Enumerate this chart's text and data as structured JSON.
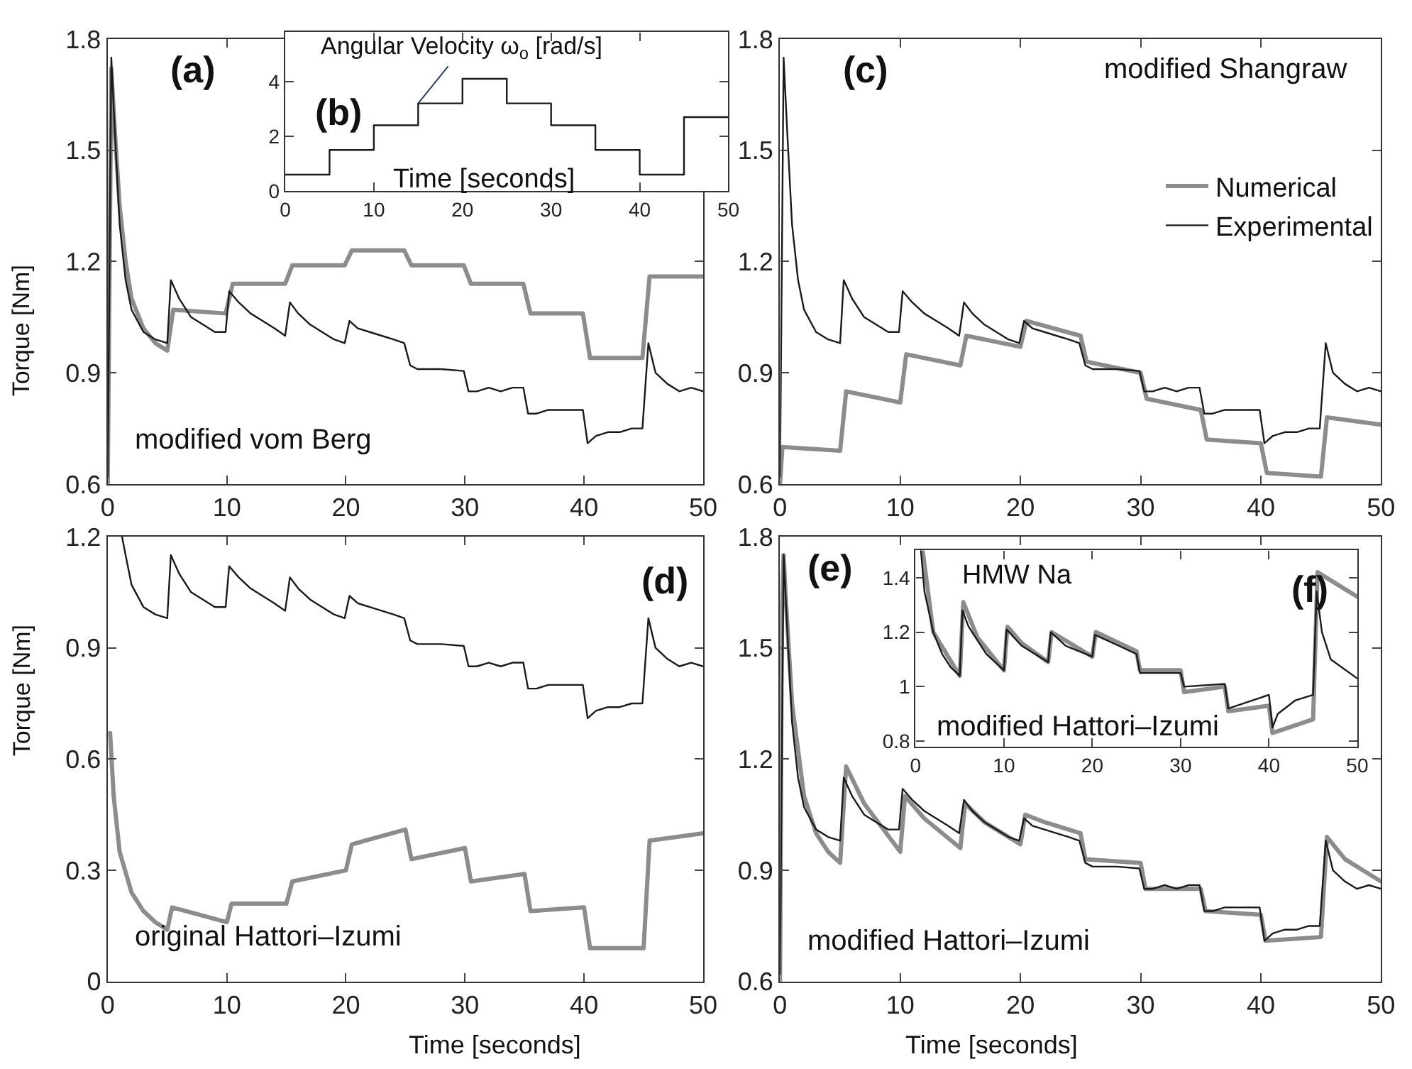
{
  "chart_data": [
    {
      "type": "line",
      "ylabel": "Torque [Nm]",
      "annotations": [
        "(a)",
        "modified vom Berg"
      ],
      "xlim": [
        0,
        50
      ],
      "xticks": [
        0,
        10,
        20,
        30,
        40,
        50
      ],
      "ylim": [
        0.6,
        1.8
      ],
      "yticks": [
        0.6,
        0.9,
        1.2,
        1.5,
        1.8
      ],
      "legend": false,
      "series": [
        {
          "color": "#8c8c8c",
          "x": [
            0,
            0.3,
            0.6,
            1,
            1.5,
            2,
            3,
            4,
            5,
            5.5,
            9.9,
            10.5,
            14.9,
            15.5,
            19.9,
            20.5,
            24.9,
            25.5,
            29.9,
            30.5,
            34.9,
            35.5,
            39.9,
            40.5,
            44.9,
            45.5,
            50
          ],
          "values": [
            0.6,
            1.72,
            1.55,
            1.35,
            1.2,
            1.1,
            1.02,
            0.98,
            0.96,
            1.07,
            1.06,
            1.14,
            1.14,
            1.19,
            1.19,
            1.23,
            1.23,
            1.19,
            1.19,
            1.14,
            1.14,
            1.06,
            1.06,
            0.94,
            0.94,
            1.16,
            1.16
          ]
        },
        {
          "color": "#1a1a1a",
          "x": [
            0,
            0.3,
            0.6,
            1,
            1.5,
            2,
            3,
            4,
            5,
            5.3,
            6,
            7,
            8,
            9,
            9.9,
            10.2,
            11,
            12,
            13,
            14,
            14.9,
            15.3,
            16,
            17,
            18,
            19,
            19.9,
            20.3,
            21,
            22,
            23,
            24,
            24.9,
            25.4,
            26,
            28,
            29.9,
            30.3,
            31,
            32,
            33,
            34,
            34.9,
            35.3,
            36,
            37,
            38,
            39,
            39.9,
            40.3,
            41,
            42,
            43,
            44,
            44.9,
            45.4,
            46,
            47,
            48,
            49,
            50
          ],
          "values": [
            0.62,
            1.75,
            1.55,
            1.3,
            1.15,
            1.07,
            1.01,
            0.99,
            0.98,
            1.15,
            1.1,
            1.05,
            1.03,
            1.01,
            1.01,
            1.12,
            1.09,
            1.06,
            1.04,
            1.02,
            1.0,
            1.09,
            1.06,
            1.03,
            1.01,
            0.99,
            0.98,
            1.04,
            1.02,
            1.01,
            1.0,
            0.99,
            0.98,
            0.92,
            0.91,
            0.91,
            0.905,
            0.85,
            0.85,
            0.86,
            0.85,
            0.86,
            0.86,
            0.79,
            0.79,
            0.8,
            0.8,
            0.8,
            0.8,
            0.71,
            0.73,
            0.74,
            0.74,
            0.75,
            0.75,
            0.98,
            0.9,
            0.87,
            0.85,
            0.86,
            0.85
          ]
        }
      ]
    },
    {
      "type": "step",
      "xlabel": "Time [seconds]",
      "annotations": [
        "(b)",
        {
          "text": "Angular Velocity ω$_{o}$ [rad/s]",
          "x": 15,
          "y": 3.2
        }
      ],
      "xlim": [
        0,
        50
      ],
      "xticks": [
        0,
        10,
        20,
        30,
        40,
        50
      ],
      "ylim": [
        0,
        5.8
      ],
      "yticks": [
        0,
        2,
        4
      ],
      "legend": false,
      "series": [
        {
          "color": "#1a1a1a",
          "x": [
            0,
            5,
            10,
            15,
            20,
            25,
            30,
            35,
            40,
            45,
            50
          ],
          "values": [
            0.6,
            1.5,
            2.4,
            3.2,
            4.1,
            3.2,
            2.4,
            1.5,
            0.6,
            2.7,
            2.7
          ]
        }
      ]
    },
    {
      "type": "line",
      "annotations": [
        "(c)",
        "modified Shangraw"
      ],
      "xlim": [
        0,
        50
      ],
      "xticks": [
        0,
        10,
        20,
        30,
        40,
        50
      ],
      "ylim": [
        0.6,
        1.8
      ],
      "yticks": [
        0.6,
        0.9,
        1.2,
        1.5,
        1.8
      ],
      "legend": "right",
      "series": [
        {
          "name": "Numerical",
          "color": "#8c8c8c",
          "x": [
            0,
            0.2,
            5,
            5.5,
            10,
            10.5,
            15,
            15.5,
            20,
            20.5,
            25,
            25.5,
            30,
            30.5,
            35,
            35.5,
            40,
            40.5,
            45,
            45.5,
            50
          ],
          "values": [
            0.6,
            0.7,
            0.69,
            0.85,
            0.82,
            0.95,
            0.92,
            1.0,
            0.97,
            1.04,
            1.0,
            0.93,
            0.9,
            0.83,
            0.8,
            0.72,
            0.71,
            0.63,
            0.62,
            0.78,
            0.76
          ]
        },
        {
          "name": "Experimental",
          "color": "#1a1a1a",
          "x": [
            0,
            0.3,
            0.6,
            1,
            1.5,
            2,
            3,
            4,
            5,
            5.3,
            6,
            7,
            8,
            9,
            9.9,
            10.2,
            11,
            12,
            13,
            14,
            14.9,
            15.3,
            16,
            17,
            18,
            19,
            19.9,
            20.3,
            21,
            22,
            23,
            24,
            24.9,
            25.4,
            26,
            28,
            29.9,
            30.3,
            31,
            32,
            33,
            34,
            34.9,
            35.3,
            36,
            37,
            38,
            39,
            39.9,
            40.3,
            41,
            42,
            43,
            44,
            44.9,
            45.4,
            46,
            47,
            48,
            49,
            50
          ],
          "values": [
            0.62,
            1.75,
            1.55,
            1.3,
            1.15,
            1.07,
            1.01,
            0.99,
            0.98,
            1.15,
            1.1,
            1.05,
            1.03,
            1.01,
            1.01,
            1.12,
            1.09,
            1.06,
            1.04,
            1.02,
            1.0,
            1.09,
            1.06,
            1.03,
            1.01,
            0.99,
            0.98,
            1.04,
            1.02,
            1.01,
            1.0,
            0.99,
            0.98,
            0.92,
            0.91,
            0.91,
            0.905,
            0.85,
            0.85,
            0.86,
            0.85,
            0.86,
            0.86,
            0.79,
            0.79,
            0.8,
            0.8,
            0.8,
            0.8,
            0.71,
            0.73,
            0.74,
            0.74,
            0.75,
            0.75,
            0.98,
            0.9,
            0.87,
            0.85,
            0.86,
            0.85
          ]
        }
      ]
    },
    {
      "type": "line",
      "xlabel": "Time [seconds]",
      "ylabel": "Torque [Nm]",
      "annotations": [
        "(d)",
        "original Hattori–Izumi"
      ],
      "xlim": [
        0,
        50
      ],
      "xticks": [
        0,
        10,
        20,
        30,
        40,
        50
      ],
      "ylim": [
        0,
        1.2
      ],
      "yticks": [
        0,
        0.3,
        0.6,
        0.9,
        1.2
      ],
      "legend": false,
      "series": [
        {
          "color": "#8c8c8c",
          "x": [
            0.2,
            0.5,
            1,
            2,
            3,
            4,
            5,
            5.4,
            10,
            10.4,
            15,
            15.5,
            20,
            20.5,
            25,
            25.5,
            30,
            30.5,
            35,
            35.5,
            40,
            40.5,
            45,
            45.5,
            50
          ],
          "values": [
            0.67,
            0.5,
            0.35,
            0.24,
            0.19,
            0.16,
            0.14,
            0.2,
            0.16,
            0.21,
            0.21,
            0.27,
            0.3,
            0.37,
            0.41,
            0.33,
            0.36,
            0.27,
            0.29,
            0.19,
            0.2,
            0.09,
            0.09,
            0.38,
            0.4
          ]
        },
        {
          "color": "#1a1a1a",
          "x": [
            1.2,
            1.5,
            2,
            3,
            4,
            5,
            5.3,
            6,
            7,
            8,
            9,
            9.9,
            10.2,
            11,
            12,
            13,
            14,
            14.9,
            15.3,
            16,
            17,
            18,
            19,
            19.9,
            20.3,
            21,
            22,
            23,
            24,
            24.9,
            25.4,
            26,
            28,
            29.9,
            30.3,
            31,
            32,
            33,
            34,
            34.9,
            35.3,
            36,
            37,
            38,
            39,
            39.9,
            40.3,
            41,
            42,
            43,
            44,
            44.9,
            45.4,
            46,
            47,
            48,
            49,
            50
          ],
          "values": [
            1.2,
            1.15,
            1.07,
            1.01,
            0.99,
            0.98,
            1.15,
            1.1,
            1.05,
            1.03,
            1.01,
            1.01,
            1.12,
            1.09,
            1.06,
            1.04,
            1.02,
            1.0,
            1.09,
            1.06,
            1.03,
            1.01,
            0.99,
            0.98,
            1.04,
            1.02,
            1.01,
            1.0,
            0.99,
            0.98,
            0.92,
            0.91,
            0.91,
            0.905,
            0.85,
            0.85,
            0.86,
            0.85,
            0.86,
            0.86,
            0.79,
            0.79,
            0.8,
            0.8,
            0.8,
            0.8,
            0.71,
            0.73,
            0.74,
            0.74,
            0.75,
            0.75,
            0.98,
            0.9,
            0.87,
            0.85,
            0.86,
            0.85
          ]
        }
      ]
    },
    {
      "type": "line",
      "xlabel": "Time [seconds]",
      "annotations": [
        "(e)",
        "modified Hattori–Izumi"
      ],
      "xlim": [
        0,
        50
      ],
      "xticks": [
        0,
        10,
        20,
        30,
        40,
        50
      ],
      "ylim": [
        0.6,
        1.8
      ],
      "yticks": [
        0.6,
        0.9,
        1.2,
        1.5,
        1.8
      ],
      "legend": false,
      "series": [
        {
          "color": "#8c8c8c",
          "x": [
            0,
            0.15,
            0.3,
            0.45,
            1,
            2,
            3,
            4,
            5,
            5.5,
            7,
            10,
            10.4,
            12,
            15,
            15.4,
            17,
            20,
            20.4,
            22,
            25,
            25.4,
            30,
            30.4,
            35,
            35.4,
            40,
            40.4,
            45,
            45.5,
            47,
            50
          ],
          "values": [
            0.6,
            1.6,
            1.75,
            1.65,
            1.35,
            1.1,
            1.0,
            0.95,
            0.92,
            1.18,
            1.08,
            0.95,
            1.1,
            1.04,
            0.96,
            1.08,
            1.03,
            0.97,
            1.05,
            1.03,
            1.0,
            0.93,
            0.92,
            0.85,
            0.85,
            0.79,
            0.78,
            0.71,
            0.72,
            0.99,
            0.93,
            0.87
          ]
        },
        {
          "color": "#1a1a1a",
          "x": [
            0,
            0.3,
            0.6,
            1,
            1.5,
            2,
            3,
            4,
            5,
            5.3,
            6,
            7,
            8,
            9,
            9.9,
            10.2,
            11,
            12,
            13,
            14,
            14.9,
            15.3,
            16,
            17,
            18,
            19,
            19.9,
            20.3,
            21,
            22,
            23,
            24,
            24.9,
            25.4,
            26,
            28,
            29.9,
            30.3,
            31,
            32,
            33,
            34,
            34.9,
            35.3,
            36,
            37,
            38,
            39,
            39.9,
            40.3,
            41,
            42,
            43,
            44,
            44.9,
            45.4,
            46,
            47,
            48,
            49,
            50
          ],
          "values": [
            0.62,
            1.75,
            1.55,
            1.3,
            1.15,
            1.07,
            1.01,
            0.99,
            0.98,
            1.15,
            1.1,
            1.05,
            1.03,
            1.01,
            1.01,
            1.12,
            1.09,
            1.06,
            1.04,
            1.02,
            1.0,
            1.09,
            1.06,
            1.03,
            1.01,
            0.99,
            0.98,
            1.04,
            1.02,
            1.01,
            1.0,
            0.99,
            0.98,
            0.92,
            0.91,
            0.91,
            0.905,
            0.85,
            0.85,
            0.86,
            0.85,
            0.86,
            0.86,
            0.79,
            0.79,
            0.8,
            0.8,
            0.8,
            0.8,
            0.71,
            0.73,
            0.74,
            0.74,
            0.75,
            0.75,
            0.98,
            0.9,
            0.87,
            0.85,
            0.86,
            0.85
          ]
        }
      ]
    },
    {
      "type": "line",
      "annotations": [
        "HMW Na",
        "(f)",
        "modified Hattori–Izumi"
      ],
      "xlim": [
        0,
        50
      ],
      "xticks": [
        0,
        10,
        20,
        30,
        40,
        50
      ],
      "ylim": [
        0.78,
        1.5
      ],
      "yticks": [
        0.8,
        1,
        1.2,
        1.4
      ],
      "legend": false,
      "series": [
        {
          "color": "#8c8c8c",
          "x": [
            0.8,
            2,
            5,
            5.4,
            7,
            10,
            10.4,
            12,
            15,
            15.4,
            20,
            20.4,
            25,
            25.4,
            30,
            30.4,
            35,
            35.4,
            40,
            40.4,
            45,
            45.5,
            50
          ],
          "values": [
            1.5,
            1.2,
            1.04,
            1.31,
            1.18,
            1.06,
            1.22,
            1.16,
            1.09,
            1.2,
            1.11,
            1.2,
            1.13,
            1.06,
            1.06,
            0.98,
            1.0,
            0.91,
            0.93,
            0.83,
            0.88,
            1.42,
            1.33
          ]
        },
        {
          "color": "#1a1a1a",
          "x": [
            0.6,
            1,
            2,
            3,
            4,
            5,
            5.3,
            6,
            8,
            10,
            10.3,
            12,
            15,
            15.3,
            17,
            20,
            20.3,
            23,
            25,
            25.4,
            30,
            30.4,
            35,
            35.4,
            40,
            40.4,
            41,
            43,
            45,
            45.4,
            46,
            47,
            50
          ],
          "values": [
            1.5,
            1.35,
            1.2,
            1.12,
            1.07,
            1.04,
            1.28,
            1.22,
            1.12,
            1.06,
            1.21,
            1.15,
            1.09,
            1.2,
            1.15,
            1.11,
            1.19,
            1.15,
            1.12,
            1.05,
            1.05,
            1.0,
            1.01,
            0.92,
            0.97,
            0.85,
            0.9,
            0.95,
            0.97,
            1.35,
            1.2,
            1.1,
            1.03
          ]
        }
      ]
    }
  ]
}
